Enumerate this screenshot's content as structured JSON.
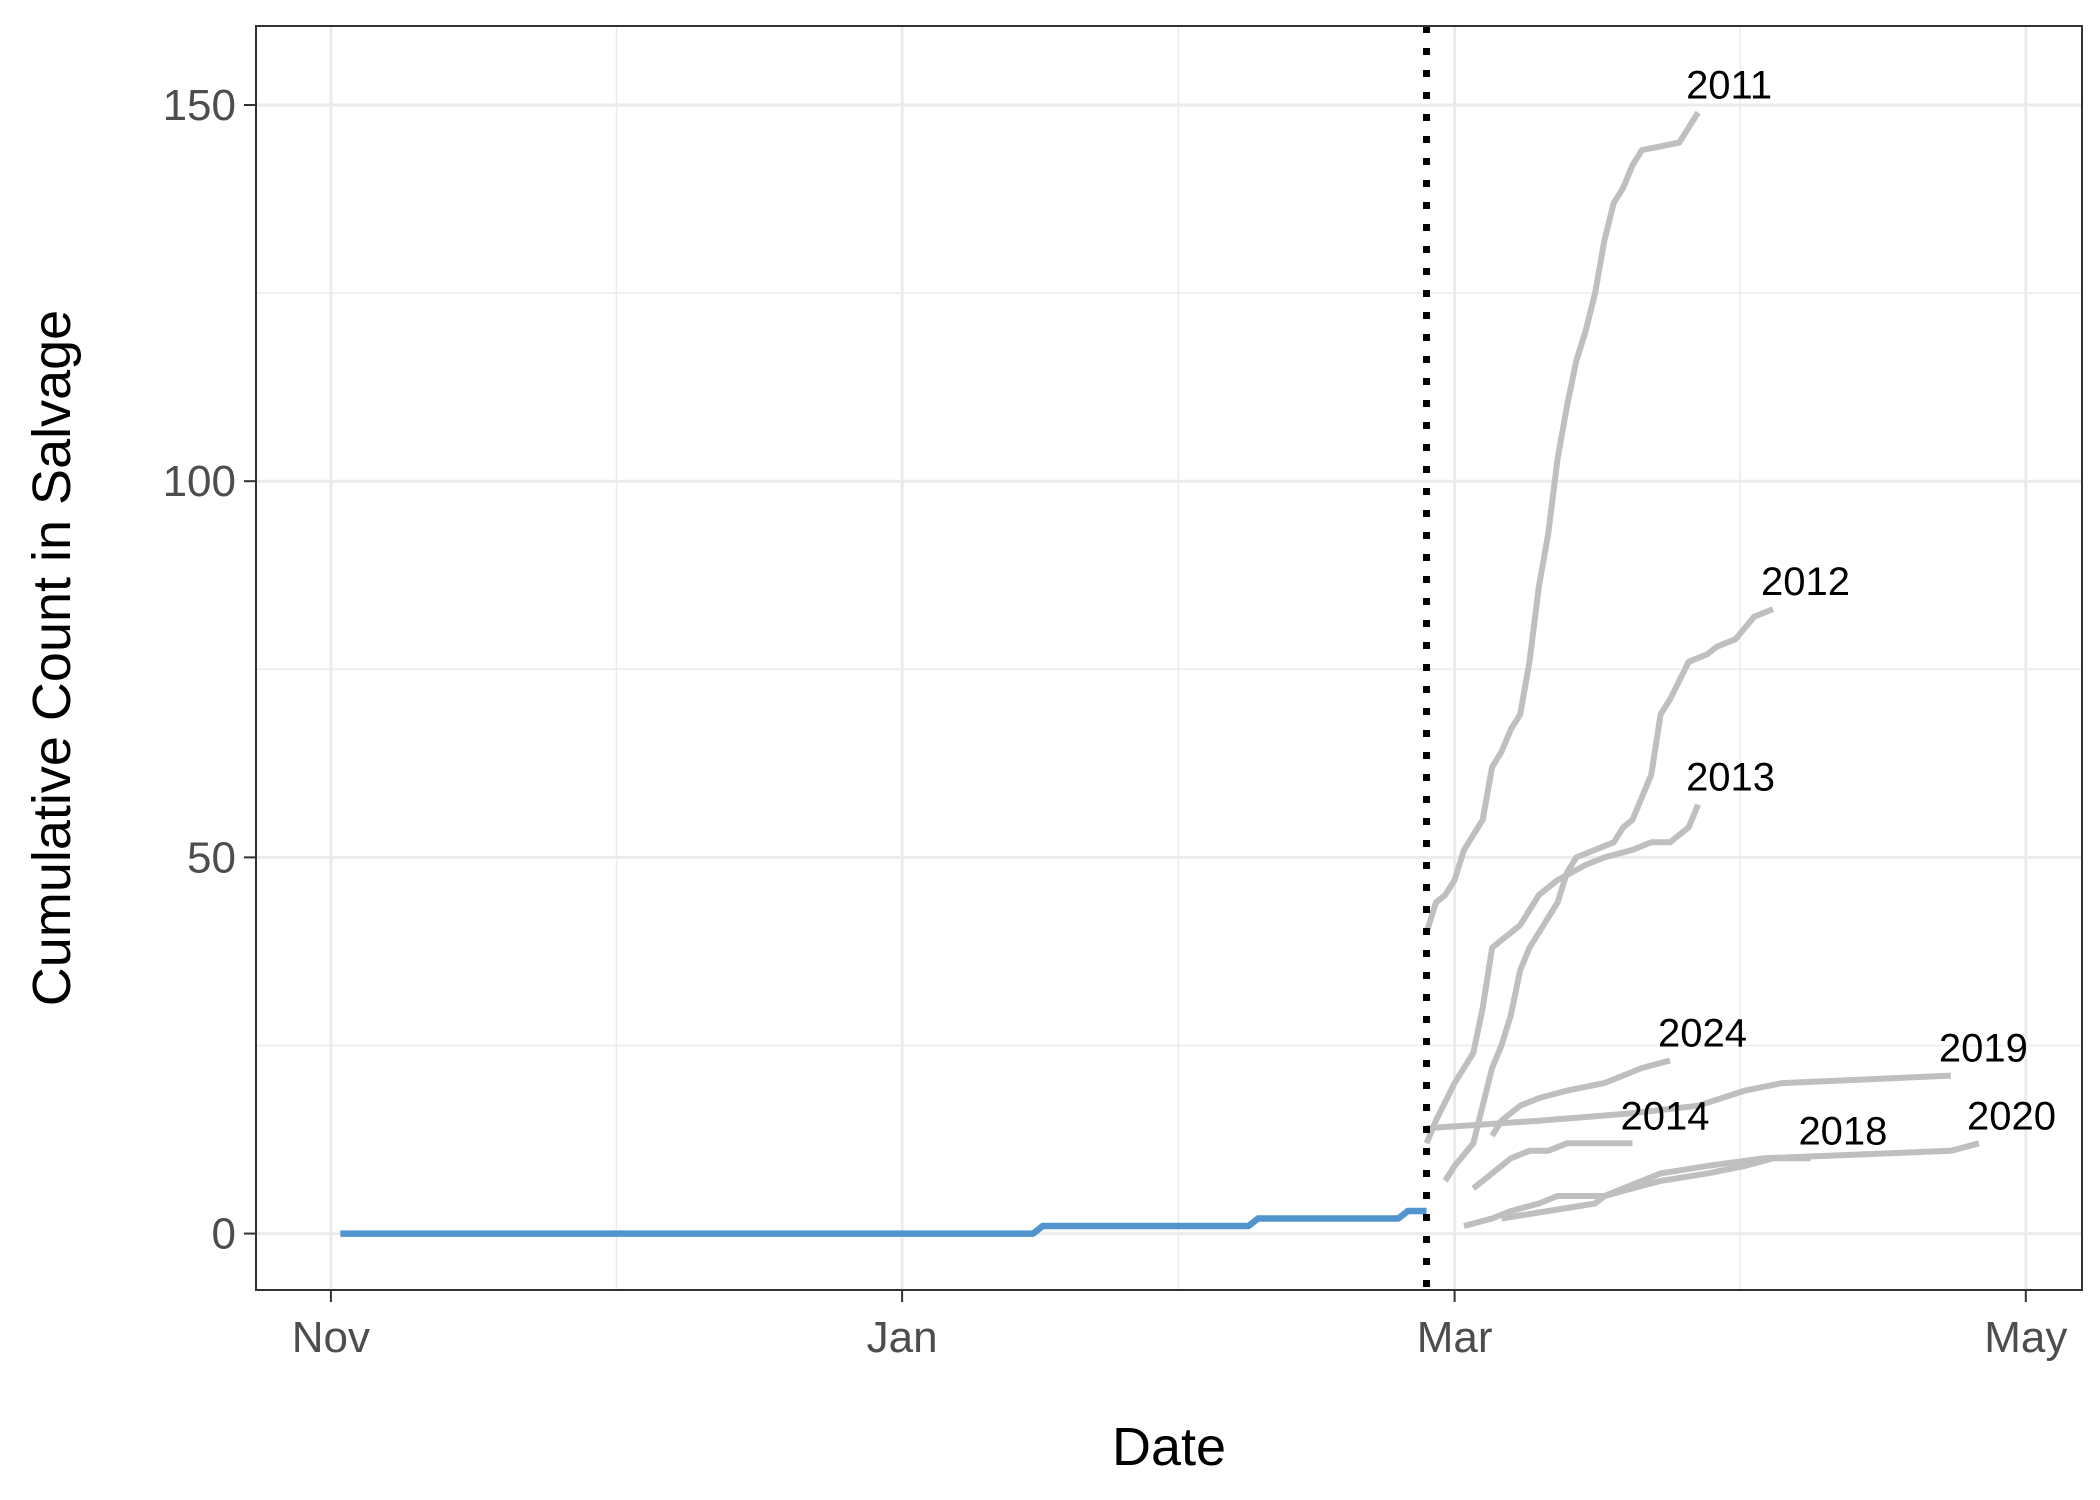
{
  "chart_data": {
    "type": "line",
    "title": "",
    "xlabel": "Date",
    "ylabel": "Cumulative Count in Salvage",
    "x_ticks": [
      {
        "label": "Nov",
        "date": "2024-11-01"
      },
      {
        "label": "Jan",
        "date": "2025-01-01"
      },
      {
        "label": "Mar",
        "date": "2025-03-01"
      },
      {
        "label": "May",
        "date": "2025-05-01"
      }
    ],
    "xlim": [
      "2024-10-24",
      "2025-05-07"
    ],
    "y_ticks": [
      0,
      50,
      100,
      150
    ],
    "ylim": [
      -7.5,
      160.5
    ],
    "grid": true,
    "vline": {
      "date": "2025-02-26",
      "style": "dotted",
      "color": "#000000"
    },
    "colors": {
      "current": "#5294cd",
      "historical": "#bfbfbf",
      "grid": "#ebebeb",
      "panel_border": "#333333"
    },
    "current_series": {
      "points": [
        [
          "2024-11-02",
          0
        ],
        [
          "2025-01-15",
          0
        ],
        [
          "2025-01-16",
          1
        ],
        [
          "2025-02-07",
          1
        ],
        [
          "2025-02-08",
          2
        ],
        [
          "2025-02-23",
          2
        ],
        [
          "2025-02-24",
          3
        ],
        [
          "2025-02-26",
          3
        ]
      ]
    },
    "historical_series": [
      {
        "name": "2011",
        "points": [
          [
            "2025-02-26",
            40
          ],
          [
            "2025-02-27",
            44
          ],
          [
            "2025-02-28",
            45
          ],
          [
            "2025-03-01",
            47
          ],
          [
            "2025-03-02",
            51
          ],
          [
            "2025-03-04",
            55
          ],
          [
            "2025-03-05",
            62
          ],
          [
            "2025-03-06",
            64
          ],
          [
            "2025-03-07",
            67
          ],
          [
            "2025-03-08",
            69
          ],
          [
            "2025-03-09",
            76
          ],
          [
            "2025-03-10",
            86
          ],
          [
            "2025-03-11",
            93
          ],
          [
            "2025-03-12",
            103
          ],
          [
            "2025-03-13",
            110
          ],
          [
            "2025-03-14",
            116
          ],
          [
            "2025-03-15",
            120
          ],
          [
            "2025-03-16",
            125
          ],
          [
            "2025-03-17",
            132
          ],
          [
            "2025-03-18",
            137
          ],
          [
            "2025-03-19",
            139
          ],
          [
            "2025-03-20",
            142
          ],
          [
            "2025-03-21",
            144
          ],
          [
            "2025-03-25",
            145
          ],
          [
            "2025-03-27",
            149
          ]
        ]
      },
      {
        "name": "2012",
        "points": [
          [
            "2025-02-28",
            7
          ],
          [
            "2025-03-01",
            9
          ],
          [
            "2025-03-03",
            12
          ],
          [
            "2025-03-05",
            22
          ],
          [
            "2025-03-06",
            25
          ],
          [
            "2025-03-07",
            29
          ],
          [
            "2025-03-08",
            35
          ],
          [
            "2025-03-09",
            38
          ],
          [
            "2025-03-10",
            40
          ],
          [
            "2025-03-12",
            44
          ],
          [
            "2025-03-13",
            48
          ],
          [
            "2025-03-14",
            50
          ],
          [
            "2025-03-18",
            52
          ],
          [
            "2025-03-19",
            54
          ],
          [
            "2025-03-20",
            55
          ],
          [
            "2025-03-22",
            61
          ],
          [
            "2025-03-23",
            69
          ],
          [
            "2025-03-24",
            71
          ],
          [
            "2025-03-26",
            76
          ],
          [
            "2025-03-28",
            77
          ],
          [
            "2025-03-29",
            78
          ],
          [
            "2025-03-31",
            79
          ],
          [
            "2025-04-02",
            82
          ],
          [
            "2025-04-04",
            83
          ]
        ]
      },
      {
        "name": "2013",
        "points": [
          [
            "2025-02-26",
            12
          ],
          [
            "2025-02-27",
            15
          ],
          [
            "2025-03-01",
            20
          ],
          [
            "2025-03-03",
            24
          ],
          [
            "2025-03-04",
            30
          ],
          [
            "2025-03-05",
            38
          ],
          [
            "2025-03-08",
            41
          ],
          [
            "2025-03-09",
            43
          ],
          [
            "2025-03-10",
            45
          ],
          [
            "2025-03-12",
            47
          ],
          [
            "2025-03-15",
            49
          ],
          [
            "2025-03-17",
            50
          ],
          [
            "2025-03-20",
            51
          ],
          [
            "2025-03-22",
            52
          ],
          [
            "2025-03-24",
            52
          ],
          [
            "2025-03-26",
            54
          ],
          [
            "2025-03-27",
            57
          ]
        ]
      },
      {
        "name": "2024",
        "points": [
          [
            "2025-03-05",
            13
          ],
          [
            "2025-03-06",
            15
          ],
          [
            "2025-03-08",
            17
          ],
          [
            "2025-03-10",
            18
          ],
          [
            "2025-03-13",
            19
          ],
          [
            "2025-03-17",
            20
          ],
          [
            "2025-03-21",
            22
          ],
          [
            "2025-03-24",
            23
          ]
        ]
      },
      {
        "name": "2014",
        "points": [
          [
            "2025-03-03",
            6
          ],
          [
            "2025-03-05",
            8
          ],
          [
            "2025-03-07",
            10
          ],
          [
            "2025-03-09",
            11
          ],
          [
            "2025-03-11",
            11
          ],
          [
            "2025-03-13",
            12
          ],
          [
            "2025-03-16",
            12
          ],
          [
            "2025-03-18",
            12
          ],
          [
            "2025-03-20",
            12
          ]
        ]
      },
      {
        "name": "2019",
        "points": [
          [
            "2025-02-26",
            14
          ],
          [
            "2025-03-10",
            15
          ],
          [
            "2025-03-20",
            16
          ],
          [
            "2025-03-27",
            17
          ],
          [
            "2025-04-01",
            19
          ],
          [
            "2025-04-05",
            20
          ],
          [
            "2025-04-23",
            21
          ]
        ]
      },
      {
        "name": "2018",
        "points": [
          [
            "2025-03-06",
            2
          ],
          [
            "2025-03-11",
            3
          ],
          [
            "2025-03-16",
            4
          ],
          [
            "2025-03-17",
            5
          ],
          [
            "2025-03-20",
            6
          ],
          [
            "2025-03-23",
            7
          ],
          [
            "2025-03-28",
            8
          ],
          [
            "2025-04-01",
            9
          ],
          [
            "2025-04-04",
            10
          ],
          [
            "2025-04-08",
            10
          ]
        ]
      },
      {
        "name": "2020",
        "points": [
          [
            "2025-03-02",
            1
          ],
          [
            "2025-03-05",
            2
          ],
          [
            "2025-03-07",
            3
          ],
          [
            "2025-03-10",
            4
          ],
          [
            "2025-03-12",
            5
          ],
          [
            "2025-03-17",
            5
          ],
          [
            "2025-03-19",
            6
          ],
          [
            "2025-03-23",
            8
          ],
          [
            "2025-03-28",
            9
          ],
          [
            "2025-04-03",
            10
          ],
          [
            "2025-04-23",
            11
          ],
          [
            "2025-04-26",
            12
          ]
        ]
      }
    ]
  }
}
